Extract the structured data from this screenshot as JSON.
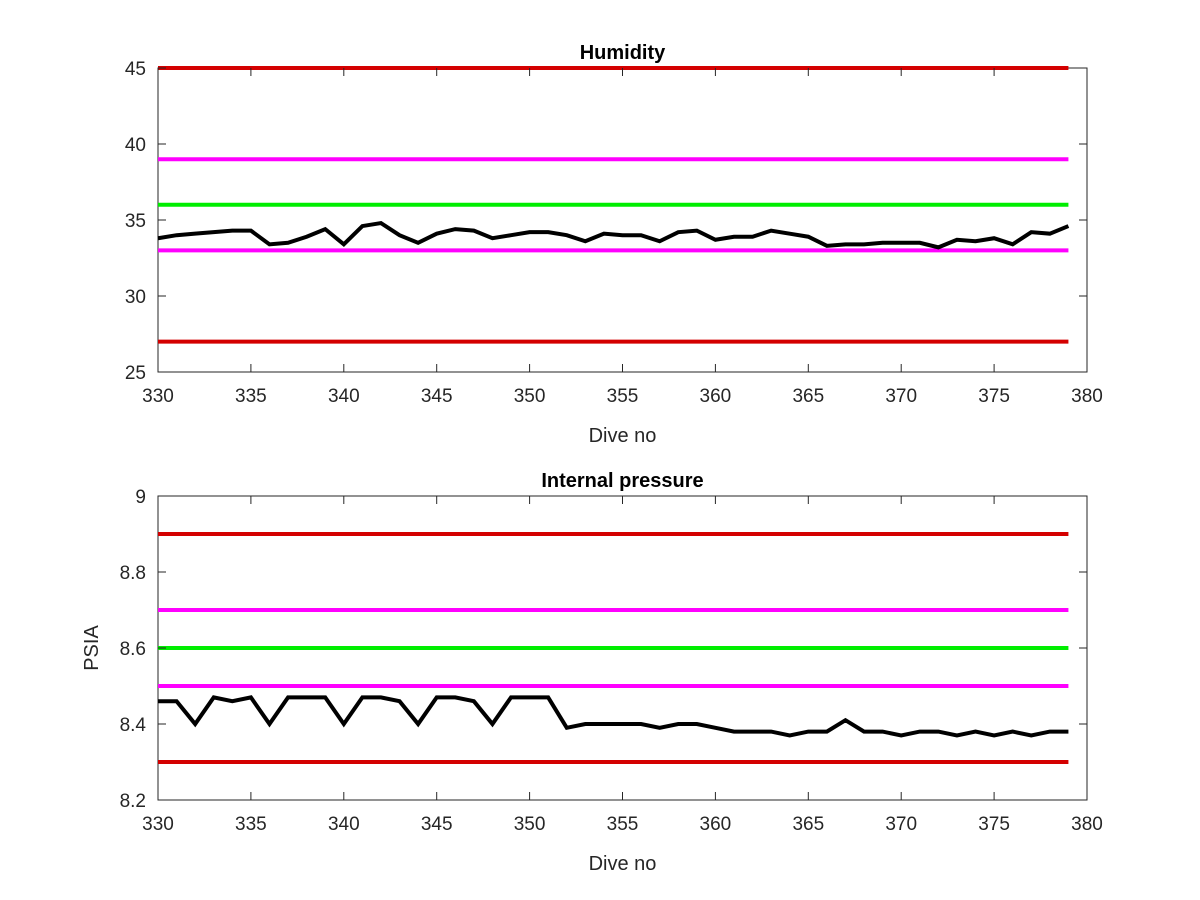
{
  "chart_data": [
    {
      "type": "line",
      "title": "Humidity",
      "xlabel": "Dive no",
      "ylabel": "",
      "xlim": [
        330,
        380
      ],
      "ylim": [
        25,
        45
      ],
      "xticks": [
        330,
        335,
        340,
        345,
        350,
        355,
        360,
        365,
        370,
        375,
        380
      ],
      "yticks": [
        25,
        30,
        35,
        40,
        45
      ],
      "grid": false,
      "limits": [
        {
          "value": 45,
          "color": "#d40000"
        },
        {
          "value": 39,
          "color": "#ff00ff"
        },
        {
          "value": 36,
          "color": "#00ee00"
        },
        {
          "value": 33,
          "color": "#ff00ff"
        },
        {
          "value": 27,
          "color": "#d40000"
        }
      ],
      "series": [
        {
          "color": "#000000",
          "x": [
            330,
            331,
            332,
            333,
            334,
            335,
            336,
            337,
            338,
            339,
            340,
            341,
            342,
            343,
            344,
            345,
            346,
            347,
            348,
            349,
            350,
            351,
            352,
            353,
            354,
            355,
            356,
            357,
            358,
            359,
            360,
            361,
            362,
            363,
            364,
            365,
            366,
            367,
            368,
            369,
            370,
            371,
            372,
            373,
            374,
            375,
            376,
            377,
            378,
            379
          ],
          "y": [
            33.8,
            34.0,
            34.1,
            34.2,
            34.3,
            34.3,
            33.4,
            33.5,
            33.9,
            34.4,
            33.4,
            34.6,
            34.8,
            34.0,
            33.5,
            34.1,
            34.4,
            34.3,
            33.8,
            34.0,
            34.2,
            34.2,
            34.0,
            33.6,
            34.1,
            34.0,
            34.0,
            33.6,
            34.2,
            34.3,
            33.7,
            33.9,
            33.9,
            34.3,
            34.1,
            33.9,
            33.3,
            33.4,
            33.4,
            33.5,
            33.5,
            33.5,
            33.2,
            33.7,
            33.6,
            33.8,
            33.4,
            34.2,
            34.1,
            34.6
          ]
        }
      ]
    },
    {
      "type": "line",
      "title": "Internal pressure",
      "xlabel": "Dive no",
      "ylabel": "PSIA",
      "xlim": [
        330,
        380
      ],
      "ylim": [
        8.2,
        9
      ],
      "xticks": [
        330,
        335,
        340,
        345,
        350,
        355,
        360,
        365,
        370,
        375,
        380
      ],
      "yticks": [
        8.2,
        8.4,
        8.6,
        8.8,
        9
      ],
      "ytick_labels": [
        "8.2",
        "8.4",
        "8.6",
        "8.8",
        "9"
      ],
      "grid": false,
      "limits": [
        {
          "value": 8.9,
          "color": "#d40000"
        },
        {
          "value": 8.7,
          "color": "#ff00ff"
        },
        {
          "value": 8.6,
          "color": "#00ee00"
        },
        {
          "value": 8.5,
          "color": "#ff00ff"
        },
        {
          "value": 8.3,
          "color": "#d40000"
        }
      ],
      "series": [
        {
          "color": "#000000",
          "x": [
            330,
            331,
            332,
            333,
            334,
            335,
            336,
            337,
            338,
            339,
            340,
            341,
            342,
            343,
            344,
            345,
            346,
            347,
            348,
            349,
            350,
            351,
            352,
            353,
            354,
            355,
            356,
            357,
            358,
            359,
            360,
            361,
            362,
            363,
            364,
            365,
            366,
            367,
            368,
            369,
            370,
            371,
            372,
            373,
            374,
            375,
            376,
            377,
            378,
            379
          ],
          "y": [
            8.46,
            8.46,
            8.4,
            8.47,
            8.46,
            8.47,
            8.4,
            8.47,
            8.47,
            8.47,
            8.4,
            8.47,
            8.47,
            8.46,
            8.4,
            8.47,
            8.47,
            8.46,
            8.4,
            8.47,
            8.47,
            8.47,
            8.39,
            8.4,
            8.4,
            8.4,
            8.4,
            8.39,
            8.4,
            8.4,
            8.39,
            8.38,
            8.38,
            8.38,
            8.37,
            8.38,
            8.38,
            8.41,
            8.38,
            8.38,
            8.37,
            8.38,
            8.38,
            8.37,
            8.38,
            8.37,
            8.38,
            8.37,
            8.38,
            8.38
          ]
        }
      ]
    }
  ]
}
